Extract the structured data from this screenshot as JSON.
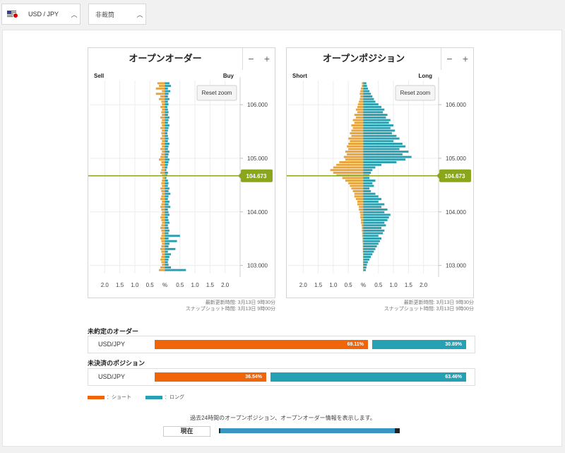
{
  "selectors": {
    "pair": "USD / JPY",
    "bias": "非裁筒"
  },
  "open_orders": {
    "title": "オープンオーダー",
    "side_left": "Sell",
    "side_right": "Buy",
    "reset_zoom": "Reset zoom",
    "zoom_minus": "−",
    "zoom_plus": "+",
    "current_price": "104.673",
    "timestamp_line1": "最新更新時間: 3月13日 9時30分",
    "timestamp_line2": "スナップショット時間: 3月13日 9時00分"
  },
  "open_positions": {
    "title": "オープンポジション",
    "side_left": "Short",
    "side_right": "Long",
    "reset_zoom": "Reset zoom",
    "zoom_minus": "−",
    "zoom_plus": "+",
    "current_price": "104.673",
    "timestamp_line1": "最新更新時間: 3月13日 9時30分",
    "timestamp_line2": "スナップショット時間: 3月13日 9時00分"
  },
  "chart_data": [
    {
      "type": "bar",
      "title": "オープンオーダー",
      "orientation": "horizontal-mirrored",
      "price_ticks": [
        "106.000",
        "105.000",
        "104.000",
        "103.000"
      ],
      "price_range": [
        102.85,
        106.45
      ],
      "current_price": 104.673,
      "x_ticks": [
        "2.0",
        "1.5",
        "1.0",
        "0.5",
        "%",
        "0.5",
        "1.0",
        "1.5",
        "2.0"
      ],
      "x_range_percent": [
        -2.5,
        2.5
      ],
      "series": [
        {
          "name": "Sell",
          "color": "#e8a33a",
          "values": [
            0.25,
            0.2,
            0.3,
            0.1,
            0.3,
            0.15,
            0.2,
            0.12,
            0.1,
            0.15,
            0.1,
            0.12,
            0.1,
            0.15,
            0.1,
            0.12,
            0.1,
            0.15,
            0.1,
            0.12,
            0.1,
            0.15,
            0.1,
            0.12,
            0.1,
            0.15,
            0.1,
            0.12,
            0.15,
            0.2,
            0.12,
            0.15,
            0.1,
            0.12,
            0.15,
            0.1,
            0.08,
            0.1,
            0.12,
            0.1,
            0.15,
            0.12,
            0.1,
            0.12,
            0.15,
            0.1,
            0.12,
            0.15,
            0.12,
            0.1,
            0.12,
            0.15,
            0.12,
            0.1,
            0.12,
            0.15,
            0.12,
            0.1,
            0.12,
            0.15,
            0.12,
            0.1,
            0.12,
            0.15,
            0.12,
            0.1,
            0.12,
            0.15,
            0.12,
            0.1,
            0.15,
            0.2
          ]
        },
        {
          "name": "Buy",
          "color": "#2a9fb0",
          "values": [
            0.15,
            0.2,
            0.1,
            0.18,
            0.12,
            0.1,
            0.15,
            0.1,
            0.12,
            0.08,
            0.1,
            0.12,
            0.1,
            0.15,
            0.12,
            0.1,
            0.15,
            0.12,
            0.1,
            0.08,
            0.1,
            0.12,
            0.1,
            0.15,
            0.12,
            0.1,
            0.15,
            0.12,
            0.1,
            0.15,
            0.12,
            0.1,
            0.08,
            0.05,
            0.1,
            0.08,
            0.05,
            0.1,
            0.12,
            0.1,
            0.15,
            0.12,
            0.18,
            0.12,
            0.1,
            0.15,
            0.12,
            0.18,
            0.1,
            0.12,
            0.15,
            0.1,
            0.12,
            0.15,
            0.1,
            0.12,
            0.15,
            0.12,
            0.5,
            0.12,
            0.4,
            0.15,
            0.12,
            0.35,
            0.1,
            0.2,
            0.15,
            0.12,
            0.1,
            0.12,
            0.2,
            0.7
          ]
        }
      ]
    },
    {
      "type": "bar",
      "title": "オープンポジション",
      "orientation": "horizontal-mirrored",
      "price_ticks": [
        "106.000",
        "105.000",
        "104.000",
        "103.000"
      ],
      "price_range": [
        102.85,
        106.45
      ],
      "current_price": 104.673,
      "x_ticks": [
        "2.0",
        "1.5",
        "1.0",
        "0.5",
        "%",
        "0.5",
        "1.0",
        "1.5",
        "2.0"
      ],
      "x_range_percent": [
        -2.5,
        2.5
      ],
      "series": [
        {
          "name": "Short",
          "color": "#e8a33a",
          "values": [
            0.05,
            0.05,
            0.08,
            0.1,
            0.12,
            0.1,
            0.12,
            0.15,
            0.18,
            0.2,
            0.25,
            0.2,
            0.3,
            0.25,
            0.35,
            0.3,
            0.4,
            0.35,
            0.4,
            0.45,
            0.4,
            0.5,
            0.45,
            0.5,
            0.55,
            0.5,
            0.6,
            0.55,
            0.65,
            0.6,
            0.8,
            0.9,
            1.0,
            1.1,
            1.0,
            0.9,
            0.7,
            0.6,
            0.5,
            0.45,
            0.4,
            0.35,
            0.3,
            0.3,
            0.25,
            0.2,
            0.2,
            0.15,
            0.15,
            0.12,
            0.1,
            0.1,
            0.08,
            0.08,
            0.06,
            0.05,
            0.05,
            0.04,
            0.04,
            0.03,
            0.03,
            0.02,
            0.02,
            0.02,
            0.02,
            0.01,
            0.01,
            0.01,
            0.01,
            0.01,
            0.01,
            0.01
          ]
        },
        {
          "name": "Long",
          "color": "#2a9fb0",
          "values": [
            0.1,
            0.12,
            0.15,
            0.2,
            0.25,
            0.3,
            0.35,
            0.4,
            0.5,
            0.6,
            0.7,
            0.65,
            0.8,
            0.75,
            0.9,
            0.85,
            1.0,
            0.9,
            1.05,
            0.95,
            1.1,
            1.2,
            1.0,
            1.3,
            1.4,
            1.2,
            1.5,
            1.3,
            1.6,
            1.4,
            1.1,
            0.6,
            0.4,
            0.3,
            0.25,
            0.2,
            0.2,
            0.4,
            0.3,
            0.35,
            0.2,
            0.25,
            0.4,
            0.5,
            0.6,
            0.5,
            0.7,
            0.6,
            0.8,
            0.7,
            0.9,
            0.85,
            0.8,
            0.7,
            0.75,
            0.6,
            0.7,
            0.65,
            0.5,
            0.6,
            0.55,
            0.5,
            0.45,
            0.4,
            0.35,
            0.3,
            0.25,
            0.2,
            0.15,
            0.12,
            0.1,
            0.08
          ]
        }
      ]
    }
  ],
  "pending_orders": {
    "label": "未約定のオーダー",
    "pair": "USD/JPY",
    "short_pct_text": "69.11%",
    "long_pct_text": "30.89%",
    "short_value": 69.11,
    "long_value": 30.89
  },
  "open_position_ratio": {
    "label": "未決済のポジション",
    "pair": "USD/JPY",
    "short_pct_text": "36.54%",
    "long_pct_text": "63.46%",
    "short_value": 36.54,
    "long_value": 63.46
  },
  "legend": {
    "short": "：ショート",
    "long": "：ロング",
    "short_color": "#f0650a",
    "long_color": "#26a0b3"
  },
  "history": {
    "hint": "過去24時間のオープンポジション、オープンオーダー情報を表示します。",
    "now_label": "現在",
    "slider_position": 1.0
  }
}
